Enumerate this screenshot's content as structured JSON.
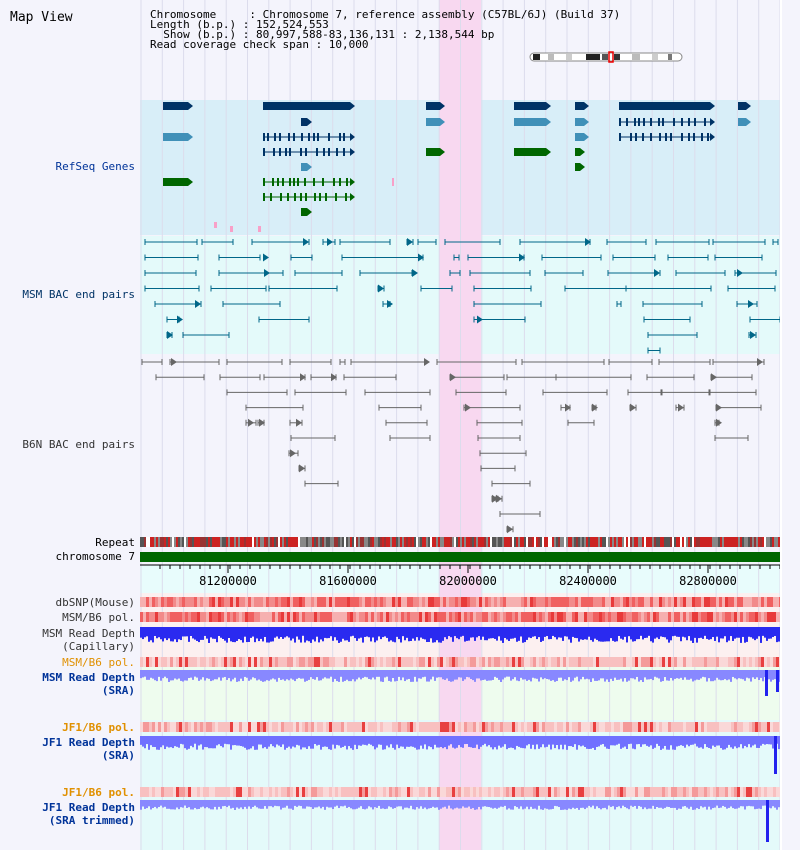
{
  "title": "Map View",
  "info": {
    "line1": "Chromosome     : Chromosome 7, reference assembly (C57BL/6J) (Build 37)",
    "line2": "Length (b.p.) : 152,524,553",
    "line3": "  Show (b.p.) : 80,997,588-83,136,131 : 2,138,544 bp",
    "line4": "Read coverage check span : 10,000"
  },
  "tracks": {
    "refseq": "RefSeq Genes",
    "msm_bac": "MSM BAC end pairs",
    "b6n_bac": "B6N BAC end pairs",
    "repeat": "Repeat",
    "chromosome": "chromosome 7",
    "dbsnp": "dbSNP(Mouse)",
    "msm_b6_pol_1": "MSM/B6 pol.",
    "msm_depth_cap_1": "MSM Read Depth",
    "msm_depth_cap_2": "(Capillary)",
    "msm_b6_pol_2": "MSM/B6 pol.",
    "msm_depth_sra_1": "MSM Read Depth",
    "msm_depth_sra_2": "(SRA)",
    "jf1_b6_pol_1": "JF1/B6 pol.",
    "jf1_depth_sra_1": "JF1 Read Depth",
    "jf1_depth_sra_2": "(SRA)",
    "jf1_b6_pol_2": "JF1/B6 pol.",
    "jf1_depth_trim_1": "JF1 Read Depth",
    "jf1_depth_trim_2": "(SRA trimmed)"
  },
  "axis": {
    "ticks": [
      "81200000",
      "81600000",
      "82000000",
      "82400000",
      "82800000"
    ]
  },
  "colors": {
    "refseq_bg": "#d8eef8",
    "bac_bg": "#e4fafa",
    "highlight": "#f8d8f0",
    "dark_blue": "#003366",
    "mid_blue": "#4090b8",
    "green": "#006600",
    "msm_label": "#003399",
    "jf1_label": "#e09000",
    "depth_blue": "#2222ee",
    "depth_light": "#8888ff"
  }
}
